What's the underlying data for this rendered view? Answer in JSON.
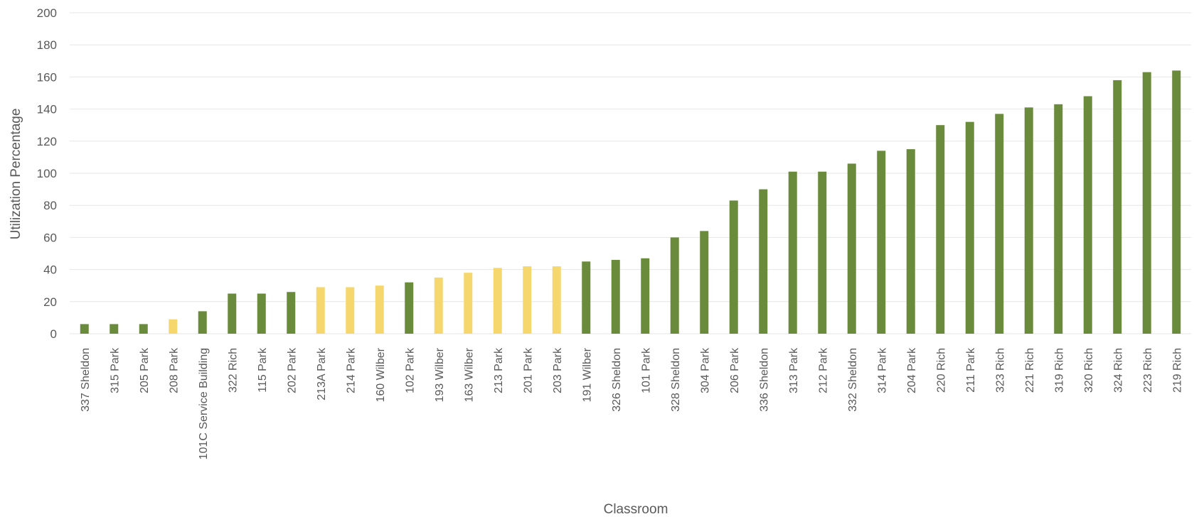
{
  "chart_data": {
    "type": "bar",
    "title": "",
    "xlabel": "Classroom",
    "ylabel": "Utilization Percentage",
    "ylim": [
      0,
      200
    ],
    "yticks": [
      0,
      20,
      40,
      60,
      80,
      100,
      120,
      140,
      160,
      180,
      200
    ],
    "grid": true,
    "legend": "none",
    "colors": {
      "high": "#6a8a3c",
      "low": "#f5d76e"
    },
    "categories": [
      "337 Sheldon",
      "315 Park",
      "205 Park",
      "208 Park",
      "101C Service Building",
      "322 Rich",
      "115 Park",
      "202 Park",
      "213A Park",
      "214 Park",
      "160 Wilber",
      "102 Park",
      "193 Wilber",
      "163 Wilber",
      "213 Park",
      "201 Park",
      "203 Park",
      "191 Wilber",
      "326 Sheldon",
      "101 Park",
      "328 Sheldon",
      "304 Park",
      "206 Park",
      "336 Sheldon",
      "313 Park",
      "212 Park",
      "332 Sheldon",
      "314 Park",
      "204 Park",
      "220 Rich",
      "211 Park",
      "323 Rich",
      "221 Rich",
      "319 Rich",
      "320 Rich",
      "324 Rich",
      "223 Rich",
      "219 Rich"
    ],
    "values": [
      6,
      6,
      6,
      9,
      14,
      25,
      25,
      26,
      29,
      29,
      30,
      32,
      35,
      38,
      41,
      42,
      42,
      45,
      46,
      47,
      60,
      64,
      83,
      90,
      101,
      101,
      106,
      114,
      115,
      130,
      132,
      137,
      141,
      143,
      148,
      158,
      163,
      164
    ],
    "bar_color_keys": [
      "high",
      "high",
      "high",
      "low",
      "high",
      "high",
      "high",
      "high",
      "low",
      "low",
      "low",
      "high",
      "low",
      "low",
      "low",
      "low",
      "low",
      "high",
      "high",
      "high",
      "high",
      "high",
      "high",
      "high",
      "high",
      "high",
      "high",
      "high",
      "high",
      "high",
      "high",
      "high",
      "high",
      "high",
      "high",
      "high",
      "high",
      "high"
    ]
  }
}
